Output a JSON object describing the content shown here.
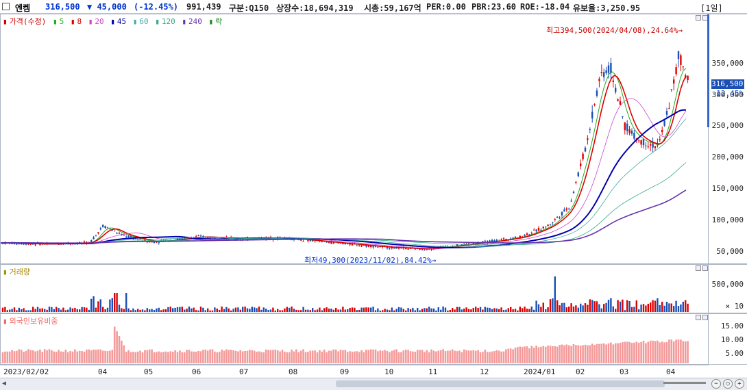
{
  "header": {
    "name": "엔켐",
    "price": "316,500",
    "change": "▼ 45,000",
    "change_pct": "(-12.45%)",
    "volume": "991,439",
    "class": "구분:Q150",
    "shares": "상장수:18,694,319",
    "mcap": "시총:59,167억",
    "per": "PER:0.00",
    "pbr": "PBR:23.60",
    "roe": "ROE:-18.04",
    "float_ratio": "유보율:3,250.95",
    "period": "[1일]"
  },
  "price_panel": {
    "legend": [
      {
        "label": "가격(수정)",
        "color": "#cc0000"
      },
      {
        "label": "5",
        "color": "#22aa22"
      },
      {
        "label": "8",
        "color": "#dd0000"
      },
      {
        "label": "20",
        "color": "#cc44cc"
      },
      {
        "label": "45",
        "color": "#0000aa"
      },
      {
        "label": "60",
        "color": "#44aaaa"
      },
      {
        "label": "120",
        "color": "#33aa88"
      },
      {
        "label": "240",
        "color": "#6633aa"
      },
      {
        "label": "락",
        "color": "#228822"
      }
    ],
    "high_note": "최고394,500(2024/04/08),24.64%→",
    "low_note": "최저49,300(2023/11/02),84.42%→",
    "ticks": [
      "350,000",
      "300,000",
      "250,000",
      "200,000",
      "150,000",
      "100,000",
      "50,000"
    ],
    "current_tag": "316,500",
    "current_pct": "-12.45%"
  },
  "volume_panel": {
    "legend": "거래량",
    "color": "#999900",
    "ticks": [
      "500,000",
      "× 10"
    ]
  },
  "foreign_panel": {
    "legend": "외국인보유비중",
    "color": "#ee6666",
    "ticks": [
      "15.00",
      "10.00",
      "5.00"
    ]
  },
  "x_labels": [
    "2023/02/02",
    "04",
    "05",
    "06",
    "07",
    "08",
    "09",
    "10",
    "11",
    "12",
    "2024/01",
    "02",
    "03",
    "04"
  ]
}
